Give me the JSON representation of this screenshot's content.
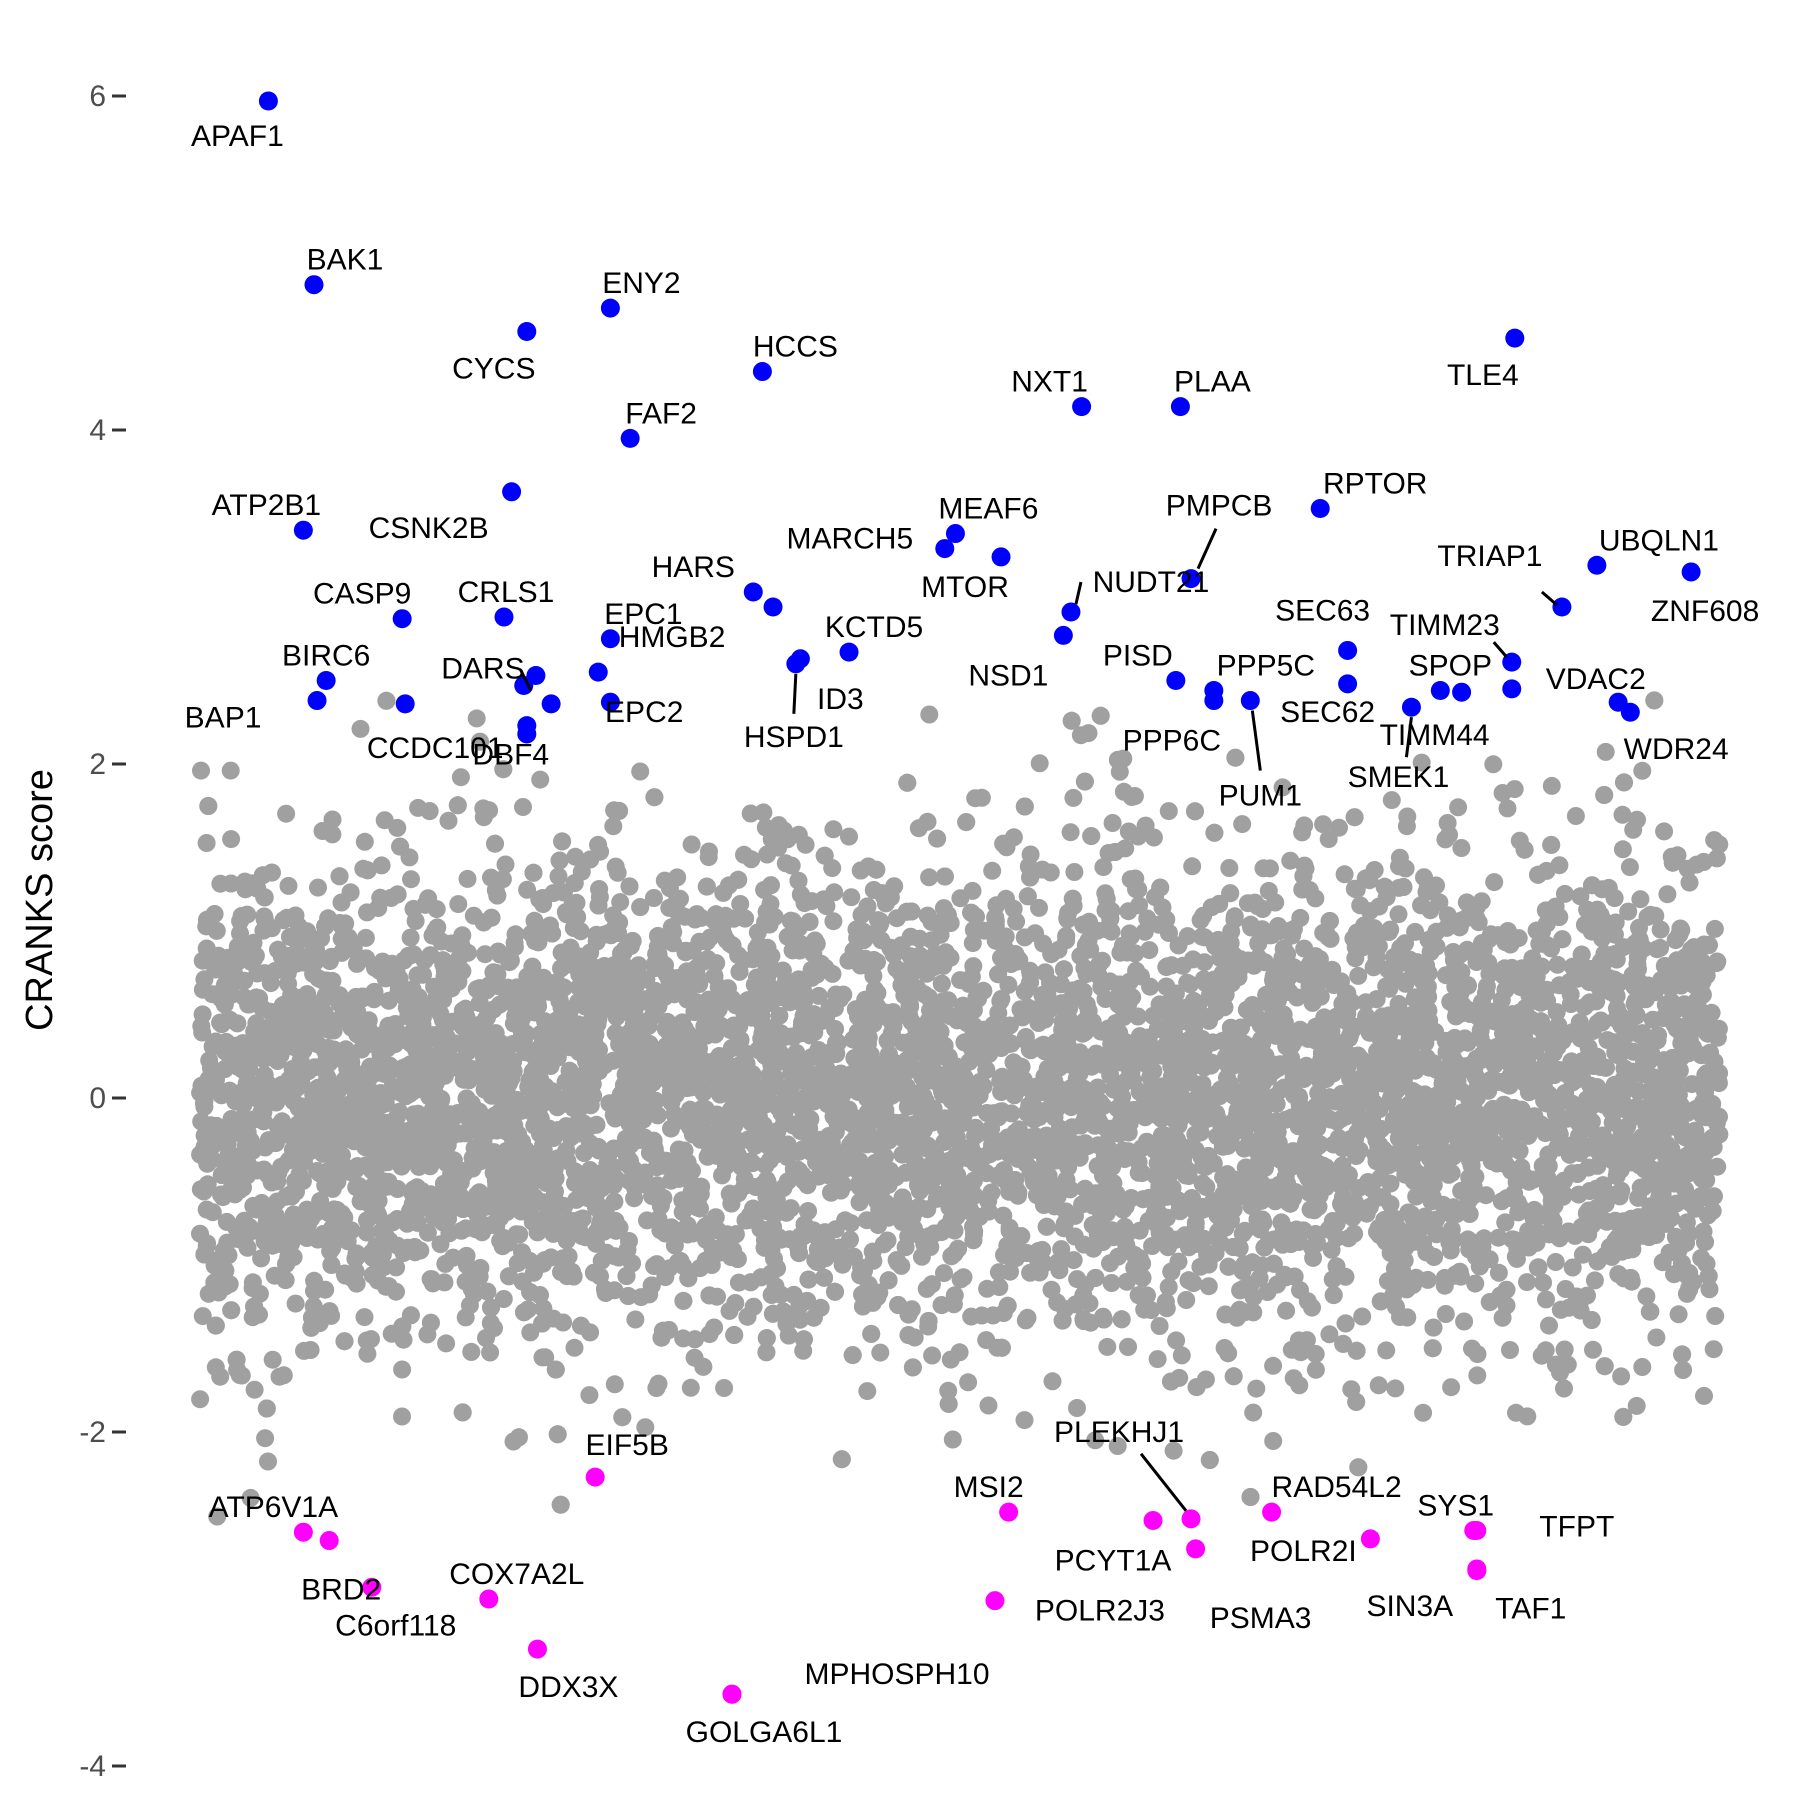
{
  "chart_data": {
    "type": "scatter",
    "title": "",
    "xlabel": "",
    "ylabel": "CRANKS score",
    "ylim": [
      -4,
      6.35
    ],
    "xlim": [
      0,
      1
    ],
    "grid": false,
    "legend": "none",
    "yticks": [
      6,
      4,
      2,
      0,
      -2,
      -4
    ],
    "ytick_labels": [
      "6",
      "4",
      "2",
      "0",
      "-2",
      "-4"
    ],
    "colors": {
      "background": "#a0a0a0",
      "positive": "#0000ff",
      "negative": "#ff00ff"
    },
    "background_points": {
      "count_approx": 18000,
      "x_range": [
        0.0,
        1.0
      ],
      "y_range": [
        -3.2,
        2.5
      ],
      "color": "#a0a0a0"
    },
    "positive_genes": [
      {
        "label": "APAF1",
        "x": 0.045,
        "y": 5.97
      },
      {
        "label": "BAK1",
        "x": 0.075,
        "y": 4.87
      },
      {
        "label": "ENY2",
        "x": 0.27,
        "y": 4.73
      },
      {
        "label": "CYCS",
        "x": 0.215,
        "y": 4.59
      },
      {
        "label": "HCCS",
        "x": 0.37,
        "y": 4.35
      },
      {
        "label": "TLE4",
        "x": 0.865,
        "y": 4.55
      },
      {
        "label": "NXT1",
        "x": 0.58,
        "y": 4.14
      },
      {
        "label": "PLAA",
        "x": 0.645,
        "y": 4.14
      },
      {
        "label": "FAF2",
        "x": 0.283,
        "y": 3.95
      },
      {
        "label": "CSNK2B",
        "x": 0.205,
        "y": 3.63
      },
      {
        "label": "RPTOR",
        "x": 0.737,
        "y": 3.53
      },
      {
        "label": "ATP2B1",
        "x": 0.068,
        "y": 3.4
      },
      {
        "label": "MEAF6",
        "x": 0.497,
        "y": 3.38
      },
      {
        "label": "MARCH5",
        "x": 0.49,
        "y": 3.29
      },
      {
        "label": "MTOR",
        "x": 0.527,
        "y": 3.24
      },
      {
        "label": "UBQLN1",
        "x": 0.919,
        "y": 3.19
      },
      {
        "label": "ZNF608",
        "x": 0.981,
        "y": 3.15
      },
      {
        "label": "PMPCB",
        "x": 0.652,
        "y": 3.11
      },
      {
        "label": "HARS",
        "x": 0.364,
        "y": 3.03
      },
      {
        "label": "TRIAP1",
        "x": 0.896,
        "y": 2.94
      },
      {
        "label": "HMGB2",
        "x": 0.377,
        "y": 2.94
      },
      {
        "label": "NUDT21",
        "x": 0.573,
        "y": 2.91
      },
      {
        "label": "CASP9",
        "x": 0.133,
        "y": 2.87
      },
      {
        "label": "CRLS1",
        "x": 0.2,
        "y": 2.88
      },
      {
        "label": "NSD1",
        "x": 0.568,
        "y": 2.77
      },
      {
        "label": "EPC1",
        "x": 0.27,
        "y": 2.75
      },
      {
        "label": "KCTD5",
        "x": 0.427,
        "y": 2.67
      },
      {
        "label": "SEC63",
        "x": 0.755,
        "y": 2.68
      },
      {
        "label": "HSPD1",
        "x": 0.392,
        "y": 2.6
      },
      {
        "label": "ID3",
        "x": 0.395,
        "y": 2.63
      },
      {
        "label": "TIMM23",
        "x": 0.863,
        "y": 2.61
      },
      {
        "label": "EPC2",
        "x": 0.262,
        "y": 2.55
      },
      {
        "label": "DARS",
        "x": 0.221,
        "y": 2.53
      },
      {
        "label": "BIRC6",
        "x": 0.083,
        "y": 2.5
      },
      {
        "label": "PISD",
        "x": 0.642,
        "y": 2.5
      },
      {
        "label": "SEC62",
        "x": 0.755,
        "y": 2.48
      },
      {
        "label": "DBF4",
        "x": 0.213,
        "y": 2.47
      },
      {
        "label": "SPOP",
        "x": 0.816,
        "y": 2.44
      },
      {
        "label": "PPP5C",
        "x": 0.667,
        "y": 2.44
      },
      {
        "label": "VDAC2",
        "x": 0.863,
        "y": 2.45
      },
      {
        "label": "TIMM44",
        "x": 0.83,
        "y": 2.43
      },
      {
        "label": "BAP1",
        "x": 0.077,
        "y": 2.38
      },
      {
        "label": "PPP6C",
        "x": 0.667,
        "y": 2.38
      },
      {
        "label": "PUM1",
        "x": 0.691,
        "y": 2.38
      },
      {
        "label": "CCDC101",
        "x": 0.135,
        "y": 2.36
      },
      {
        "label": "HSPD1b",
        "x": 0.231,
        "y": 2.36,
        "unlabeled": true
      },
      {
        "label": "EPC2b",
        "x": 0.27,
        "y": 2.37,
        "unlabeled": true
      },
      {
        "label": "WDR24",
        "x": 0.933,
        "y": 2.37
      },
      {
        "label": "SMEK1",
        "x": 0.797,
        "y": 2.34
      },
      {
        "label": "WDR24b",
        "x": 0.941,
        "y": 2.31,
        "unlabeled": true
      },
      {
        "label": "DBF4b",
        "x": 0.215,
        "y": 2.23,
        "unlabeled": true
      },
      {
        "label": "DBF4c",
        "x": 0.215,
        "y": 2.18,
        "unlabeled": true
      }
    ],
    "negative_genes": [
      {
        "label": "ATP6V1A",
        "x": 0.068,
        "y": -2.6
      },
      {
        "label": "BRD2",
        "x": 0.085,
        "y": -2.65
      },
      {
        "label": "MSI2",
        "x": 0.532,
        "y": -2.48
      },
      {
        "label": "PLEKHJ1",
        "x": 0.652,
        "y": -2.52
      },
      {
        "label": "PCYT1A",
        "x": 0.627,
        "y": -2.53
      },
      {
        "label": "RAD54L2",
        "x": 0.705,
        "y": -2.48
      },
      {
        "label": "SYS1",
        "x": 0.838,
        "y": -2.59
      },
      {
        "label": "POLR2I",
        "x": 0.77,
        "y": -2.64
      },
      {
        "label": "PSMA3",
        "x": 0.655,
        "y": -2.7
      },
      {
        "label": "SIN3A",
        "x": 0.84,
        "y": -2.82
      },
      {
        "label": "TAF1",
        "x": 0.84,
        "y": -2.83
      },
      {
        "label": "TFPT",
        "x": 0.84,
        "y": -2.59
      },
      {
        "label": "C6orf118",
        "x": 0.113,
        "y": -2.93
      },
      {
        "label": "COX7A2L",
        "x": 0.19,
        "y": -3.0
      },
      {
        "label": "POLR2J3",
        "x": 0.523,
        "y": -3.01
      },
      {
        "label": "DDX3X",
        "x": 0.222,
        "y": -3.3
      },
      {
        "label": "EIF5B",
        "x": 0.26,
        "y": -2.27
      },
      {
        "label": "GOLGA6L1",
        "x": 0.35,
        "y": -3.57
      },
      {
        "label": "MPHOSPH10",
        "x": 0.35,
        "y": -3.57
      }
    ],
    "annotations": [
      "APAF1",
      "BAK1",
      "ENY2",
      "CYCS",
      "HCCS",
      "TLE4",
      "NXT1",
      "PLAA",
      "FAF2",
      "CSNK2B",
      "RPTOR",
      "ATP2B1",
      "MEAF6",
      "MARCH5",
      "MTOR",
      "UBQLN1",
      "ZNF608",
      "PMPCB",
      "HARS",
      "TRIAP1",
      "HMGB2",
      "NUDT21",
      "CASP9",
      "CRLS1",
      "NSD1",
      "EPC1",
      "KCTD5",
      "SEC63",
      "HSPD1",
      "ID3",
      "TIMM23",
      "EPC2",
      "DARS",
      "BIRC6",
      "PISD",
      "SEC62",
      "DBF4",
      "SPOP",
      "PPP5C",
      "VDAC2",
      "TIMM44",
      "BAP1",
      "PPP6C",
      "PUM1",
      "CCDC101",
      "WDR24",
      "SMEK1",
      "ATP6V1A",
      "BRD2",
      "MSI2",
      "PLEKHJ1",
      "PCYT1A",
      "RAD54L2",
      "SYS1",
      "POLR2I",
      "PSMA3",
      "SIN3A",
      "TAF1",
      "TFPT",
      "C6orf118",
      "COX7A2L",
      "POLR2J3",
      "DDX3X",
      "EIF5B",
      "GOLGA6L1",
      "MPHOSPH10"
    ]
  }
}
